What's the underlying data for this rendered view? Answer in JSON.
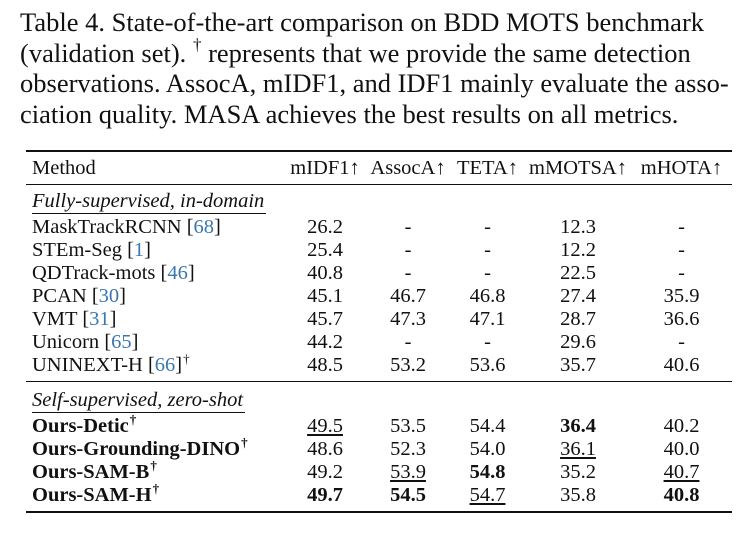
{
  "caption": {
    "lines": [
      "Table 4. State-of-the-art comparison on BDD MOTS benchmark",
      "(validation set).",
      "represents that we provide the same detection",
      "observations. AssocA, mIDF1, and IDF1 mainly evaluate the asso-",
      "ciation quality. MASA achieves the best results on all metrics."
    ],
    "dagger": "†"
  },
  "table": {
    "headers": [
      "Method",
      "mIDF1↑",
      "AssocA↑",
      "TETA↑",
      "mMOTSA↑",
      "mHOTA↑"
    ],
    "sections": [
      {
        "title": "Fully-supervised, in-domain",
        "rows": [
          {
            "name": "MaskTrackRCNN",
            "ref": "68",
            "dagger": "",
            "vals": [
              "26.2",
              "-",
              "-",
              "12.3",
              "-"
            ]
          },
          {
            "name": "STEm-Seg",
            "ref": "1",
            "dagger": "",
            "vals": [
              "25.4",
              "-",
              "-",
              "12.2",
              "-"
            ]
          },
          {
            "name": "QDTrack-mots",
            "ref": "46",
            "dagger": "",
            "vals": [
              "40.8",
              "-",
              "-",
              "22.5",
              "-"
            ]
          },
          {
            "name": "PCAN",
            "ref": "30",
            "dagger": "",
            "vals": [
              "45.1",
              "46.7",
              "46.8",
              "27.4",
              "35.9"
            ]
          },
          {
            "name": "VMT",
            "ref": "31",
            "dagger": "",
            "vals": [
              "45.7",
              "47.3",
              "47.1",
              "28.7",
              "36.6"
            ]
          },
          {
            "name": "Unicorn",
            "ref": "65",
            "dagger": "",
            "vals": [
              "44.2",
              "-",
              "-",
              "29.6",
              "-"
            ]
          },
          {
            "name": "UNINEXT-H",
            "ref": "66",
            "dagger": "†",
            "vals": [
              "48.5",
              "53.2",
              "53.6",
              "35.7",
              "40.6"
            ]
          }
        ]
      },
      {
        "title": "Self-supervised, zero-shot",
        "rows": [
          {
            "name": "Ours-Detic",
            "ref": "",
            "dagger": "†",
            "vals": [
              "49.5",
              "53.5",
              "54.4",
              "36.4",
              "40.2"
            ]
          },
          {
            "name": "Ours-Grounding-DINO",
            "ref": "",
            "dagger": "†",
            "vals": [
              "48.6",
              "52.3",
              "54.0",
              "36.1",
              "40.0"
            ]
          },
          {
            "name": "Ours-SAM-B",
            "ref": "",
            "dagger": "†",
            "vals": [
              "49.2",
              "53.9",
              "54.8",
              "35.2",
              "40.7"
            ]
          },
          {
            "name": "Ours-SAM-H",
            "ref": "",
            "dagger": "†",
            "vals": [
              "49.7",
              "54.5",
              "54.7",
              "35.8",
              "40.8"
            ]
          }
        ]
      }
    ]
  },
  "colors": {
    "text": "#111111",
    "citation": "#3a76b0"
  }
}
